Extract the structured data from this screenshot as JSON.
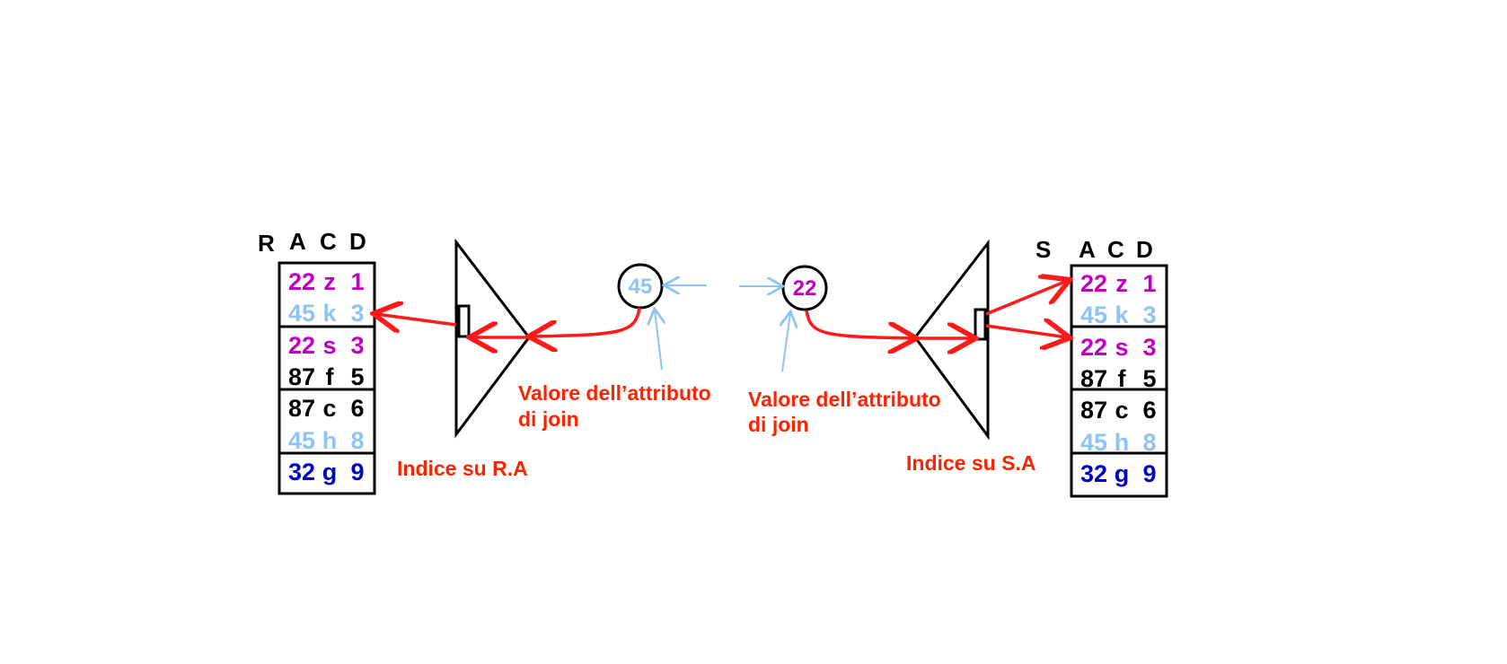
{
  "colors": {
    "magenta": "#c000c0",
    "light_blue": "#8ec3f2",
    "black": "#000000",
    "dark_blue": "#0000c0",
    "red": "#ff1a1a",
    "label_red": "#ff2200"
  },
  "left_table": {
    "relation_name": "R",
    "columns": [
      "A",
      "C",
      "D"
    ],
    "rows": [
      {
        "values": [
          "22",
          "z",
          "1"
        ],
        "color": "magenta"
      },
      {
        "values": [
          "45",
          "k",
          "3"
        ],
        "color": "light_blue"
      },
      {
        "values": [
          "22",
          "s",
          "3"
        ],
        "color": "magenta"
      },
      {
        "values": [
          "87",
          "f",
          "5"
        ],
        "color": "black"
      },
      {
        "values": [
          "87",
          "c",
          "6"
        ],
        "color": "black"
      },
      {
        "values": [
          "45",
          "h",
          "8"
        ],
        "color": "light_blue"
      },
      {
        "values": [
          "32",
          "g",
          "9"
        ],
        "color": "dark_blue"
      }
    ]
  },
  "right_table": {
    "relation_name": "S",
    "columns": [
      "A",
      "C",
      "D"
    ],
    "rows": [
      {
        "values": [
          "22",
          "z",
          "1"
        ],
        "color": "magenta"
      },
      {
        "values": [
          "45",
          "k",
          "3"
        ],
        "color": "light_blue"
      },
      {
        "values": [
          "22",
          "s",
          "3"
        ],
        "color": "magenta"
      },
      {
        "values": [
          "87",
          "f",
          "5"
        ],
        "color": "black"
      },
      {
        "values": [
          "87",
          "c",
          "6"
        ],
        "color": "black"
      },
      {
        "values": [
          "45",
          "h",
          "8"
        ],
        "color": "light_blue"
      },
      {
        "values": [
          "32",
          "g",
          "9"
        ],
        "color": "dark_blue"
      }
    ]
  },
  "left_index": {
    "label": "Indice su R.A"
  },
  "right_index": {
    "label": "Indice su S.A"
  },
  "left_circle": {
    "value": "45",
    "color": "light_blue"
  },
  "right_circle": {
    "value": "22",
    "color": "magenta"
  },
  "left_caption": {
    "line1": "Valore dell’attributo",
    "line2": "di join"
  },
  "right_caption": {
    "line1": "Valore dell’attributo",
    "line2": "di join"
  }
}
